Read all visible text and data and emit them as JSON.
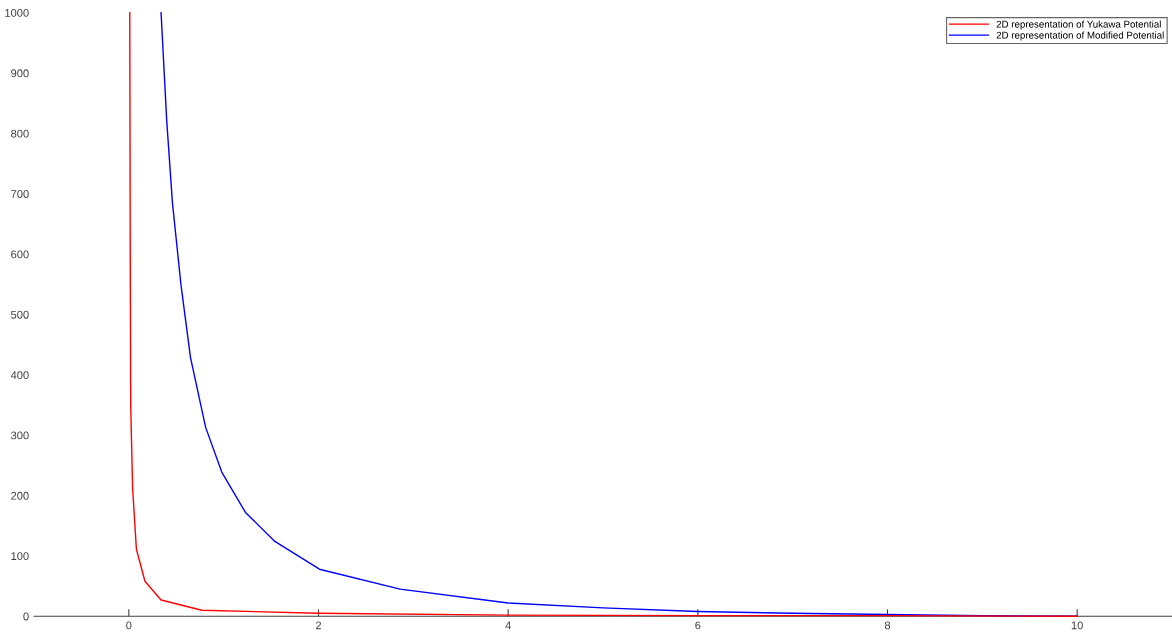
{
  "chart_data": {
    "type": "line",
    "xlim": [
      -1,
      11
    ],
    "ylim": [
      0,
      1000
    ],
    "xticks": [
      0,
      2,
      4,
      6,
      8,
      10
    ],
    "yticks": [
      0,
      100,
      200,
      300,
      400,
      500,
      600,
      700,
      800,
      900,
      1000
    ],
    "legend": "top right",
    "grid": false,
    "marker": "none",
    "line_style": "solid",
    "series": [
      {
        "name": "2D representation of Yukawa Potential",
        "color": "#ff0000",
        "x": [
          0.01,
          0.015,
          0.02,
          0.04,
          0.08,
          0.17,
          0.34,
          0.77,
          2.0,
          4,
          6,
          8,
          10
        ],
        "values": [
          1000,
          600,
          348,
          212,
          111,
          58,
          27,
          10,
          5,
          2,
          1,
          1,
          0
        ]
      },
      {
        "name": "2D representation of Modified Potential",
        "color": "#0000ff",
        "x": [
          0.34,
          0.4,
          0.46,
          0.55,
          0.65,
          0.81,
          0.98,
          1.23,
          1.54,
          2.01,
          2.86,
          4,
          5,
          6,
          7,
          8,
          9,
          10
        ],
        "values": [
          1000,
          820,
          685,
          549,
          429,
          313,
          239,
          172,
          124,
          78,
          45,
          22,
          14,
          8,
          5,
          3,
          1,
          0
        ]
      }
    ]
  }
}
